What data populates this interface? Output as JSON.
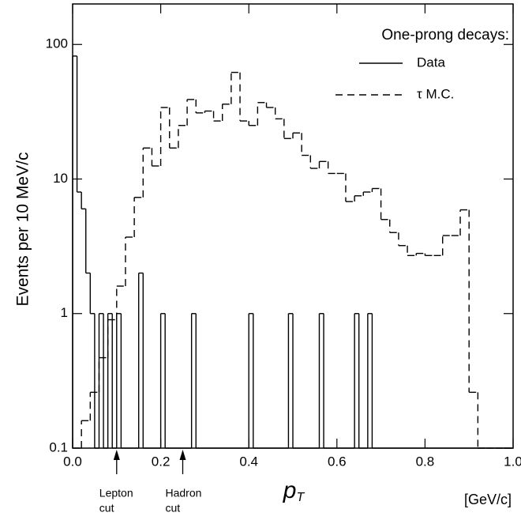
{
  "chart_data": {
    "type": "histogram",
    "y_label": "Events per 10 MeV/c",
    "x_label": "p",
    "x_label_sub": "T",
    "x_unit": "[GeV/c]",
    "legend_title": "One-prong decays:",
    "log_y": true,
    "xlim": [
      0,
      1.0
    ],
    "ylim": [
      0.1,
      200
    ],
    "xticks": [
      {
        "value": 0,
        "label": "0.0"
      },
      0.2,
      0.4,
      0.6,
      0.8,
      {
        "value": 1.0,
        "label": "1.0"
      }
    ],
    "yticks": [
      0.1,
      1,
      10,
      100
    ],
    "annotations": [
      {
        "lines": [
          "Lepton",
          "cut"
        ],
        "x": 0.1
      },
      {
        "lines": [
          "Hadron",
          "cut"
        ],
        "x": 0.25
      }
    ],
    "series": [
      {
        "name": "Data",
        "color": "#000000",
        "dash": false,
        "bins": [
          0,
          0.01,
          0.02,
          0.03,
          0.04,
          0.05,
          0.06,
          0.07,
          0.08,
          0.09,
          0.1,
          0.11,
          0.12,
          0.13,
          0.14,
          0.15,
          0.16,
          0.17,
          0.18,
          0.19,
          0.2,
          0.21,
          0.22,
          0.23,
          0.24,
          0.25,
          0.26,
          0.27,
          0.28,
          0.29,
          0.3,
          0.31,
          0.32,
          0.33,
          0.34,
          0.35,
          0.36,
          0.37,
          0.38,
          0.39,
          0.4,
          0.41,
          0.42,
          0.43,
          0.44,
          0.45,
          0.46,
          0.47,
          0.48,
          0.49,
          0.5,
          0.51,
          0.52,
          0.53,
          0.54,
          0.55,
          0.56,
          0.57,
          0.58,
          0.59,
          0.6,
          0.61,
          0.62,
          0.63,
          0.64,
          0.65,
          0.66,
          0.67,
          0.68,
          0.69,
          0.7,
          0.71,
          0.72,
          0.73,
          0.74,
          0.75,
          0.76,
          0.77,
          0.78,
          0.79,
          0.8,
          0.81,
          0.82,
          0.83,
          0.84,
          0.85,
          0.86,
          0.87,
          0.88,
          0.89,
          0.9,
          0.91,
          0.92,
          0.93,
          0.94,
          0.95,
          0.96,
          0.97,
          0.98,
          0.99,
          1.0
        ],
        "values": [
          82,
          8,
          6,
          2,
          1,
          0,
          1,
          0,
          1,
          0,
          1,
          0,
          0,
          0,
          0,
          2,
          0,
          0,
          0,
          0,
          1,
          0,
          0,
          0,
          0,
          0,
          0,
          1,
          0,
          0,
          0,
          0,
          0,
          0,
          0,
          0,
          0,
          0,
          0,
          0,
          1,
          0,
          0,
          0,
          0,
          0,
          0,
          0,
          0,
          1,
          0,
          0,
          0,
          0,
          0,
          0,
          1,
          0,
          0,
          0,
          0,
          0,
          0,
          0,
          1,
          0,
          0,
          1,
          0,
          0,
          0,
          0,
          0,
          0,
          0,
          0,
          0,
          0,
          0,
          0,
          0,
          0,
          0,
          0,
          0,
          0,
          0,
          0,
          0,
          0,
          0,
          0,
          0,
          0,
          0,
          0,
          0,
          0,
          0,
          0
        ]
      },
      {
        "name": "τ M.C.",
        "color": "#000000",
        "dash": true,
        "bins": [
          0,
          0.02,
          0.04,
          0.06,
          0.08,
          0.1,
          0.12,
          0.14,
          0.16,
          0.18,
          0.2,
          0.22,
          0.24,
          0.26,
          0.28,
          0.3,
          0.32,
          0.34,
          0.36,
          0.38,
          0.4,
          0.42,
          0.44,
          0.46,
          0.48,
          0.5,
          0.52,
          0.54,
          0.56,
          0.58,
          0.6,
          0.62,
          0.64,
          0.66,
          0.68,
          0.7,
          0.72,
          0.74,
          0.76,
          0.78,
          0.8,
          0.82,
          0.84,
          0.86,
          0.88,
          0.9,
          0.92,
          0.94,
          0.96,
          0.98,
          1.0
        ],
        "values": [
          0,
          0.16,
          0.26,
          0.47,
          0.9,
          1.6,
          3.7,
          7.3,
          17,
          12.5,
          34,
          17,
          25,
          39,
          31,
          32,
          27,
          36,
          62,
          27,
          25,
          37,
          34,
          28,
          20,
          22,
          15,
          12,
          13.5,
          11,
          11,
          6.8,
          7.5,
          8,
          8.5,
          5,
          4,
          3.2,
          2.7,
          2.8,
          2.7,
          2.7,
          3.8,
          3.8,
          5.9,
          0.26,
          0.1,
          0.1,
          0.1,
          0.1
        ]
      }
    ]
  }
}
